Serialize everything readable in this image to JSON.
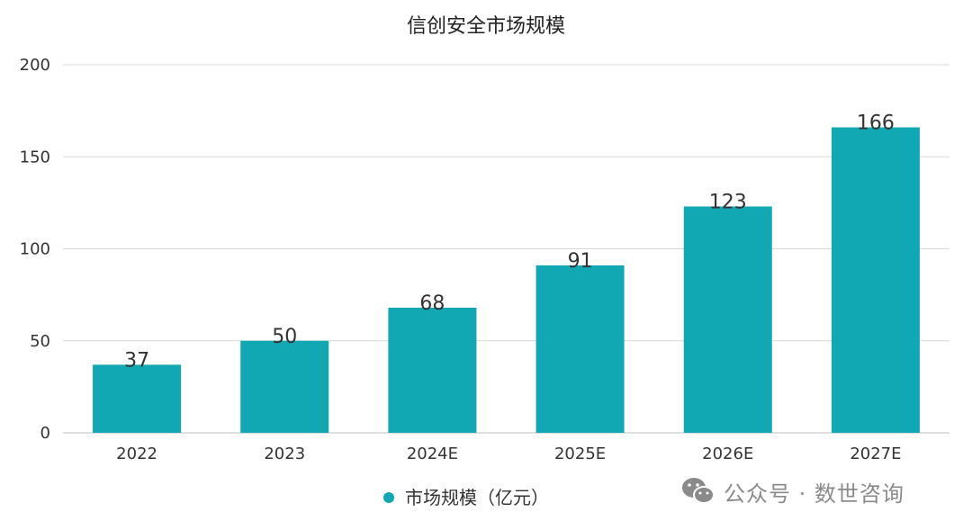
{
  "chart_data": {
    "type": "bar",
    "title": "信创安全市场规模",
    "categories": [
      "2022",
      "2023",
      "2024E",
      "2025E",
      "2026E",
      "2027E"
    ],
    "series": [
      {
        "name": "市场规模（亿元）",
        "values": [
          37,
          50,
          68,
          91,
          123,
          166
        ]
      }
    ],
    "data_labels": [
      "37",
      "50",
      "68",
      "91",
      "123",
      "166"
    ],
    "ylim": [
      0,
      200
    ],
    "yticks": [
      "0",
      "50",
      "100",
      "150",
      "200"
    ],
    "grid": true,
    "legend_position": "bottom-center",
    "colors": {
      "bar": "#11A7B3",
      "grid": "#d9d9d9",
      "axis": "#bfbfbf"
    }
  },
  "watermark": {
    "icon": "wechat-icon",
    "text": "公众号 · 数世咨询"
  }
}
